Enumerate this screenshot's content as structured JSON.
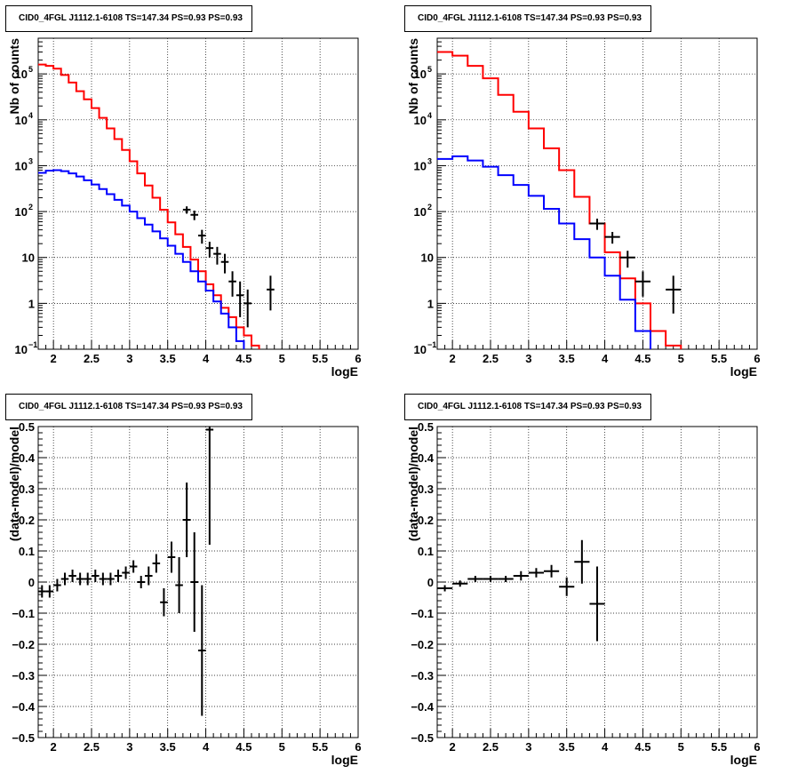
{
  "panel_title": "CID0_4FGL J1112.1-6108 TS=147.34 PS=0.93 PS=0.93",
  "colors": {
    "model_total": "#ff0000",
    "source": "#0000ff",
    "data": "#000000",
    "grid": "#000000"
  },
  "chart_data": [
    {
      "type": "line",
      "id": "counts_fine",
      "title": "CID0_4FGL J1112.1-6108 TS=147.34 PS=0.93 PS=0.93",
      "xlabel": "logE",
      "ylabel": "Nb of counts",
      "xlim": [
        1.8,
        6.0
      ],
      "ylim": [
        0.1,
        600000
      ],
      "yscale": "log",
      "grid": true,
      "xticks": [
        "2",
        "2.5",
        "3",
        "3.5",
        "4",
        "4.5",
        "5",
        "5.5",
        "6"
      ],
      "yticks": [
        "10^-1",
        "1",
        "10",
        "10^2",
        "10^3",
        "10^4",
        "10^5"
      ],
      "series": [
        {
          "style": "step",
          "color": "red",
          "edges": [
            1.8,
            1.9,
            2.0,
            2.1,
            2.2,
            2.3,
            2.4,
            2.5,
            2.6,
            2.7,
            2.8,
            2.9,
            3.0,
            3.1,
            3.2,
            3.3,
            3.4,
            3.5,
            3.6,
            3.7,
            3.8,
            3.9,
            4.0,
            4.1,
            4.2,
            4.3,
            4.4,
            4.5,
            4.6,
            4.7,
            4.8,
            4.9,
            5.0,
            5.1,
            5.2,
            5.3,
            5.4,
            5.5,
            5.6,
            5.7,
            5.8,
            5.9,
            6.0
          ],
          "values": [
            160000,
            150000,
            130000,
            95000,
            65000,
            42000,
            28000,
            18000,
            11000,
            6500,
            3800,
            2200,
            1250,
            680,
            370,
            200,
            110,
            58,
            32,
            17,
            9,
            5,
            2.6,
            1.5,
            0.8,
            0.5,
            0.3,
            0.2,
            0.12,
            0.09,
            0.09,
            0.09,
            0.09,
            0.09,
            0.09,
            0.09,
            0.09,
            0.09,
            0.09,
            0.09,
            0.09,
            0.09
          ]
        },
        {
          "style": "step",
          "color": "blue",
          "edges": [
            1.8,
            1.9,
            2.0,
            2.1,
            2.2,
            2.3,
            2.4,
            2.5,
            2.6,
            2.7,
            2.8,
            2.9,
            3.0,
            3.1,
            3.2,
            3.3,
            3.4,
            3.5,
            3.6,
            3.7,
            3.8,
            3.9,
            4.0,
            4.1,
            4.2,
            4.3,
            4.4,
            4.5,
            4.6,
            4.7,
            4.8,
            4.9,
            5.0,
            5.1,
            5.2,
            5.3,
            5.4,
            5.5,
            5.6,
            5.7,
            5.8,
            5.9,
            6.0
          ],
          "values": [
            700,
            780,
            800,
            760,
            680,
            580,
            480,
            390,
            310,
            240,
            180,
            135,
            100,
            72,
            52,
            37,
            26,
            18,
            12,
            8,
            5,
            3,
            1.9,
            1.1,
            0.6,
            0.3,
            0.15,
            0.09,
            0.09,
            0.09,
            0.09,
            0.09,
            0.09,
            0.09,
            0.09,
            0.09,
            0.09,
            0.09,
            0.09,
            0.09,
            0.09,
            0.09
          ]
        },
        {
          "style": "errorbar",
          "color": "black",
          "x": [
            3.75,
            3.85,
            3.95,
            4.05,
            4.15,
            4.25,
            4.35,
            4.45,
            4.55,
            4.85
          ],
          "xerr": 0.05,
          "y": [
            110,
            85,
            30,
            16,
            12,
            8,
            3,
            1.5,
            1,
            2
          ],
          "ylo": [
            90,
            65,
            20,
            10,
            7,
            4.5,
            1.4,
            0.5,
            0.3,
            0.7
          ],
          "yhi": [
            130,
            105,
            40,
            22,
            17,
            12,
            5,
            3,
            2,
            4
          ]
        }
      ]
    },
    {
      "type": "line",
      "id": "counts_coarse",
      "title": "CID0_4FGL J1112.1-6108 TS=147.34 PS=0.93 PS=0.93",
      "xlabel": "logE",
      "ylabel": "Nb of counts",
      "xlim": [
        1.8,
        6.0
      ],
      "ylim": [
        0.1,
        600000
      ],
      "yscale": "log",
      "grid": true,
      "xticks": [
        "2",
        "2.5",
        "3",
        "3.5",
        "4",
        "4.5",
        "5",
        "5.5",
        "6"
      ],
      "yticks": [
        "10^-1",
        "1",
        "10",
        "10^2",
        "10^3",
        "10^4",
        "10^5"
      ],
      "series": [
        {
          "style": "step",
          "color": "red",
          "edges": [
            1.8,
            2.0,
            2.2,
            2.4,
            2.6,
            2.8,
            3.0,
            3.2,
            3.4,
            3.6,
            3.8,
            4.0,
            4.2,
            4.4,
            4.6,
            4.8,
            5.0,
            5.2,
            5.4,
            5.6,
            5.8,
            6.0
          ],
          "values": [
            300000,
            250000,
            150000,
            80000,
            35000,
            15000,
            6500,
            2400,
            800,
            210,
            55,
            13,
            3.5,
            1.0,
            0.25,
            0.12,
            0.09,
            0.09,
            0.09,
            0.09,
            0.09
          ]
        },
        {
          "style": "step",
          "color": "blue",
          "edges": [
            1.8,
            2.0,
            2.2,
            2.4,
            2.6,
            2.8,
            3.0,
            3.2,
            3.4,
            3.6,
            3.8,
            4.0,
            4.2,
            4.4,
            4.6,
            4.8,
            5.0,
            5.2,
            5.4,
            5.6,
            5.8,
            6.0
          ],
          "values": [
            1400,
            1600,
            1300,
            950,
            620,
            380,
            220,
            115,
            55,
            25,
            10,
            4,
            1.2,
            0.25,
            0.09,
            0.09,
            0.09,
            0.09,
            0.09,
            0.09,
            0.09
          ]
        },
        {
          "style": "errorbar",
          "color": "black",
          "x": [
            3.9,
            4.1,
            4.3,
            4.5,
            4.9
          ],
          "xerr": 0.1,
          "y": [
            55,
            28,
            10,
            3,
            2
          ],
          "ylo": [
            40,
            20,
            6,
            1.4,
            0.6
          ],
          "yhi": [
            70,
            36,
            14,
            5,
            4
          ]
        }
      ]
    },
    {
      "type": "scatter",
      "id": "residuals_fine",
      "title": "CID0_4FGL J1112.1-6108 TS=147.34 PS=0.93 PS=0.93",
      "xlabel": "logE",
      "ylabel": "(data-model)/model",
      "xlim": [
        1.8,
        6.0
      ],
      "ylim": [
        -0.5,
        0.5
      ],
      "grid": true,
      "xticks": [
        "2",
        "2.5",
        "3",
        "3.5",
        "4",
        "4.5",
        "5",
        "5.5",
        "6"
      ],
      "yticks": [
        "-0.5",
        "-0.4",
        "-0.3",
        "-0.2",
        "-0.1",
        "0",
        "0.1",
        "0.2",
        "0.3",
        "0.4",
        "0.5"
      ],
      "series": [
        {
          "style": "errorbar",
          "color": "black",
          "xerr": 0.05,
          "x": [
            1.85,
            1.95,
            2.05,
            2.15,
            2.25,
            2.35,
            2.45,
            2.55,
            2.65,
            2.75,
            2.85,
            2.95,
            3.05,
            3.15,
            3.25,
            3.35,
            3.45,
            3.55,
            3.65,
            3.75,
            3.85,
            3.95,
            4.05
          ],
          "y": [
            -0.03,
            -0.03,
            -0.01,
            0.01,
            0.02,
            0.01,
            0.01,
            0.02,
            0.01,
            0.01,
            0.02,
            0.03,
            0.05,
            0.0,
            0.02,
            0.06,
            -0.065,
            0.08,
            -0.01,
            0.2,
            0.0,
            -0.22,
            0.49
          ],
          "ylo": [
            -0.05,
            -0.05,
            -0.03,
            -0.01,
            0.0,
            -0.01,
            -0.01,
            0.0,
            -0.01,
            -0.01,
            0.0,
            0.01,
            0.03,
            -0.02,
            -0.01,
            0.03,
            -0.11,
            0.03,
            -0.1,
            0.08,
            -0.16,
            -0.43,
            0.12
          ],
          "yhi": [
            -0.01,
            -0.01,
            0.01,
            0.03,
            0.04,
            0.03,
            0.03,
            0.04,
            0.03,
            0.03,
            0.04,
            0.05,
            0.07,
            0.02,
            0.05,
            0.09,
            -0.02,
            0.13,
            0.08,
            0.32,
            0.16,
            -0.01,
            0.5
          ]
        }
      ]
    },
    {
      "type": "scatter",
      "id": "residuals_coarse",
      "title": "CID0_4FGL J1112.1-6108 TS=147.34 PS=0.93 PS=0.93",
      "xlabel": "logE",
      "ylabel": "(data-model)/model",
      "xlim": [
        1.8,
        6.0
      ],
      "ylim": [
        -0.5,
        0.5
      ],
      "grid": true,
      "xticks": [
        "2",
        "2.5",
        "3",
        "3.5",
        "4",
        "4.5",
        "5",
        "5.5",
        "6"
      ],
      "yticks": [
        "-0.5",
        "-0.4",
        "-0.3",
        "-0.2",
        "-0.1",
        "0",
        "0.1",
        "0.2",
        "0.3",
        "0.4",
        "0.5"
      ],
      "series": [
        {
          "style": "errorbar",
          "color": "black",
          "xerr": 0.1,
          "x": [
            1.9,
            2.1,
            2.3,
            2.5,
            2.7,
            2.9,
            3.1,
            3.3,
            3.5,
            3.7,
            3.9
          ],
          "y": [
            -0.02,
            -0.005,
            0.01,
            0.01,
            0.01,
            0.02,
            0.03,
            0.035,
            -0.015,
            0.065,
            -0.07
          ],
          "ylo": [
            -0.03,
            -0.015,
            0.0,
            0.0,
            0.0,
            0.005,
            0.015,
            0.015,
            -0.045,
            -0.005,
            -0.19
          ],
          "yhi": [
            -0.01,
            0.005,
            0.02,
            0.02,
            0.02,
            0.035,
            0.045,
            0.055,
            0.015,
            0.135,
            0.05
          ]
        }
      ]
    }
  ]
}
